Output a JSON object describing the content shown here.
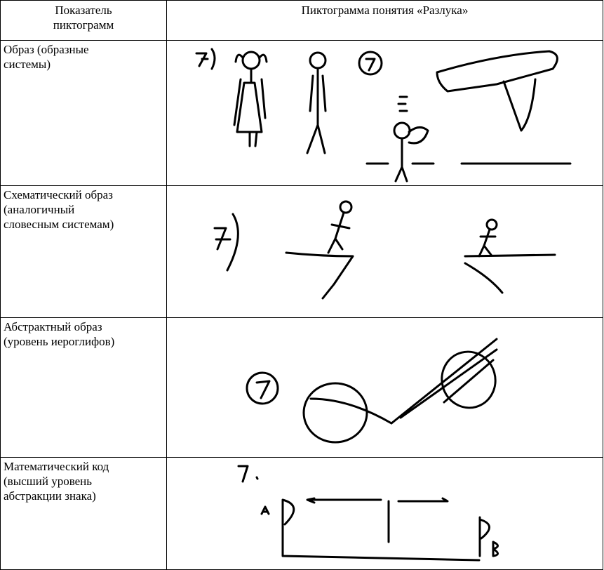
{
  "table": {
    "header": [
      "Показатель пиктограмм",
      "Пиктограмма понятия «Разлука»"
    ],
    "rows": [
      [
        "Образ (образные системы)"
      ],
      [
        "Схематический образ (аналогичный словесным системам)"
      ],
      [
        "Абстрактный образ (уровень иероглифов)"
      ],
      [
        "Математический код (высший уровень абстракции знака)"
      ]
    ]
  }
}
